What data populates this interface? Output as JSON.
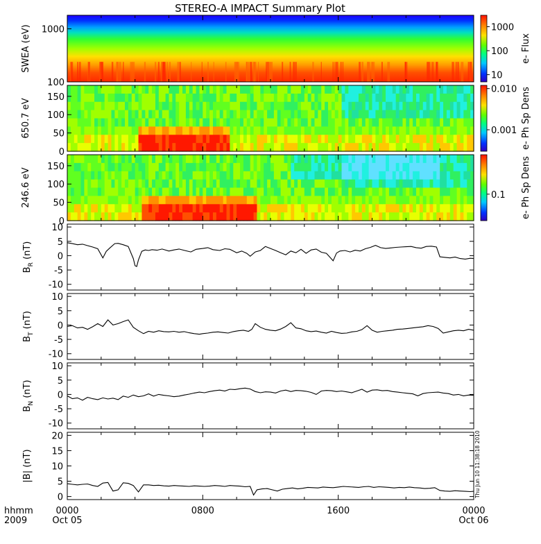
{
  "title": "STEREO-A IMPACT Summary Plot",
  "time_axis": {
    "row_label_1": "hhmm",
    "row_label_2": "2009",
    "ticks": [
      {
        "hhmm": "0000",
        "date": "Oct 05",
        "t": 0
      },
      {
        "hhmm": "0800",
        "date": "",
        "t": 8
      },
      {
        "hhmm": "1600",
        "date": "",
        "t": 16
      },
      {
        "hhmm": "0000",
        "date": "Oct 06",
        "t": 24
      }
    ],
    "range_hours": [
      0,
      24
    ]
  },
  "timestamp": "Thu Jun 10 11:38:18 2010",
  "colors": {
    "line": "#000000",
    "background": "#ffffff"
  },
  "chart_data": [
    {
      "id": "swea",
      "type": "heatmap",
      "ylabel": "SWEA (eV)",
      "yscale": "log",
      "ylim": [
        100,
        1800
      ],
      "yticks": [
        {
          "v": 1000,
          "label": "1000"
        },
        {
          "v": 100,
          "label": "100"
        }
      ],
      "colorbar": {
        "label": "e- Flux",
        "scale": "log",
        "range": [
          5,
          3000
        ],
        "ticks": [
          {
            "v": 1000,
            "label": "1000"
          },
          {
            "v": 100,
            "label": "100"
          },
          {
            "v": 10,
            "label": "10"
          }
        ]
      },
      "pattern": "energy spectrum: high flux (orange-red) at 100-250 eV decreasing to low flux (blue) above 1000 eV, steady through the day"
    },
    {
      "id": "pad650",
      "type": "heatmap",
      "ylabel": "650.7 eV",
      "ylim": [
        0,
        180
      ],
      "yticks": [
        {
          "v": 0,
          "label": "0"
        },
        {
          "v": 50,
          "label": "50"
        },
        {
          "v": 100,
          "label": "100"
        },
        {
          "v": 150,
          "label": "150"
        }
      ],
      "colorbar": {
        "label": "e- Ph Sp Dens",
        "scale": "log",
        "range": [
          0.0003,
          0.012
        ],
        "ticks": [
          {
            "v": 0.01,
            "label": "0.010"
          },
          {
            "v": 0.001,
            "label": "0.001"
          }
        ]
      },
      "pattern": "pitch-angle distribution: strong (red/yellow) near 0-50 deg around 04-09 hhmm, green elsewhere, cyan at high angles after 16 hhmm"
    },
    {
      "id": "pad246",
      "type": "heatmap",
      "ylabel": "246.6 eV",
      "ylim": [
        0,
        180
      ],
      "yticks": [
        {
          "v": 0,
          "label": "0"
        },
        {
          "v": 50,
          "label": "50"
        },
        {
          "v": 100,
          "label": "100"
        },
        {
          "v": 150,
          "label": "150"
        }
      ],
      "colorbar": {
        "label": "e- Ph Sp Dens",
        "scale": "log",
        "range": [
          0.03,
          0.6
        ],
        "ticks": [
          {
            "v": 0.1,
            "label": "0.1"
          }
        ]
      },
      "pattern": "pitch-angle distribution: red/orange band at 0-50 deg from about 04 to 11 hhmm, green/cyan elsewhere"
    },
    {
      "id": "br",
      "type": "line",
      "ylabel_main": "B",
      "ylabel_sub": "R",
      "ylabel_unit": "(nT)",
      "ylim": [
        -12,
        11
      ],
      "yticks": [
        {
          "v": 10,
          "label": "10"
        },
        {
          "v": 5,
          "label": "5"
        },
        {
          "v": 0,
          "label": "0"
        },
        {
          "v": -5,
          "label": "-5"
        },
        {
          "v": -10,
          "label": "-10"
        }
      ],
      "x": [
        0,
        0.3,
        0.6,
        0.9,
        1.2,
        1.5,
        1.8,
        2.1,
        2.3,
        2.5,
        2.8,
        3.0,
        3.3,
        3.6,
        3.9,
        4.0,
        4.1,
        4.2,
        4.4,
        4.6,
        4.8,
        5.0,
        5.3,
        5.6,
        6.0,
        6.3,
        6.6,
        7.0,
        7.3,
        7.6,
        8.0,
        8.3,
        8.6,
        9.0,
        9.3,
        9.6,
        10.0,
        10.3,
        10.6,
        10.8,
        11.1,
        11.4,
        11.7,
        12.0,
        12.3,
        12.6,
        12.9,
        13.2,
        13.5,
        13.8,
        14.1,
        14.4,
        14.7,
        15.0,
        15.3,
        15.5,
        15.7,
        15.9,
        16.1,
        16.4,
        16.7,
        17.0,
        17.3,
        17.6,
        17.9,
        18.2,
        18.5,
        18.8,
        19.1,
        19.4,
        19.7,
        20.0,
        20.3,
        20.6,
        20.9,
        21.2,
        21.5,
        21.8,
        22.0,
        22.3,
        22.6,
        22.9,
        23.2,
        23.5,
        23.8,
        24.0
      ],
      "y": [
        4.5,
        4.2,
        3.8,
        4.0,
        3.5,
        3.0,
        2.4,
        -0.8,
        1.5,
        2.6,
        4.2,
        4.3,
        3.8,
        3.2,
        -1.0,
        -3.5,
        -3.8,
        -1.5,
        1.5,
        2.0,
        1.8,
        2.1,
        1.9,
        2.3,
        1.6,
        2.0,
        2.3,
        1.7,
        1.3,
        2.2,
        2.5,
        2.8,
        2.1,
        1.8,
        2.4,
        2.2,
        1.0,
        1.6,
        0.8,
        -0.2,
        1.3,
        1.8,
        3.2,
        2.5,
        1.8,
        1.0,
        0.3,
        1.6,
        1.0,
        2.2,
        0.8,
        2.0,
        2.3,
        1.2,
        0.8,
        -0.5,
        -1.8,
        0.9,
        1.6,
        1.8,
        1.3,
        1.9,
        1.6,
        2.4,
        2.9,
        3.6,
        2.8,
        2.5,
        2.7,
        2.9,
        3.0,
        3.1,
        3.2,
        2.8,
        2.6,
        3.2,
        3.3,
        3.0,
        -0.4,
        -0.6,
        -0.8,
        -0.5,
        -1.0,
        -1.2,
        -0.9,
        -1.0
      ]
    },
    {
      "id": "bt",
      "type": "line",
      "ylabel_main": "B",
      "ylabel_sub": "T",
      "ylabel_unit": "(nT)",
      "ylim": [
        -12,
        11
      ],
      "yticks": [
        {
          "v": 10,
          "label": "10"
        },
        {
          "v": 5,
          "label": "5"
        },
        {
          "v": 0,
          "label": "0"
        },
        {
          "v": -5,
          "label": "-5"
        },
        {
          "v": -10,
          "label": "-10"
        }
      ],
      "x": [
        0,
        0.3,
        0.6,
        0.9,
        1.2,
        1.5,
        1.8,
        2.1,
        2.4,
        2.7,
        3.0,
        3.3,
        3.6,
        3.9,
        4.2,
        4.5,
        4.8,
        5.1,
        5.4,
        5.7,
        6.0,
        6.3,
        6.6,
        6.9,
        7.2,
        7.5,
        7.8,
        8.0,
        8.3,
        8.6,
        8.9,
        9.2,
        9.5,
        9.8,
        10.1,
        10.4,
        10.7,
        10.9,
        11.1,
        11.4,
        11.7,
        12.0,
        12.3,
        12.6,
        12.9,
        13.2,
        13.5,
        13.8,
        14.1,
        14.4,
        14.7,
        15.0,
        15.3,
        15.6,
        15.9,
        16.2,
        16.5,
        16.8,
        17.1,
        17.4,
        17.7,
        18.0,
        18.3,
        18.6,
        18.9,
        19.2,
        19.5,
        19.8,
        20.1,
        20.4,
        20.7,
        21.0,
        21.3,
        21.6,
        21.9,
        22.2,
        22.5,
        22.8,
        23.1,
        23.4,
        23.7,
        24.0
      ],
      "y": [
        -0.5,
        -0.2,
        -1.0,
        -0.8,
        -1.5,
        -0.6,
        0.5,
        -0.5,
        1.8,
        0.0,
        0.5,
        1.2,
        1.8,
        -0.8,
        -2.0,
        -3.0,
        -2.2,
        -2.5,
        -2.0,
        -2.3,
        -2.4,
        -2.2,
        -2.5,
        -2.3,
        -2.7,
        -3.0,
        -3.2,
        -3.0,
        -2.8,
        -2.5,
        -2.4,
        -2.6,
        -2.8,
        -2.3,
        -2.0,
        -1.8,
        -2.2,
        -1.5,
        0.5,
        -0.8,
        -1.5,
        -1.8,
        -2.0,
        -1.4,
        -0.5,
        0.8,
        -1.0,
        -1.3,
        -2.0,
        -2.3,
        -2.1,
        -2.5,
        -2.8,
        -2.2,
        -2.6,
        -2.9,
        -2.8,
        -2.4,
        -2.2,
        -1.6,
        -0.2,
        -1.8,
        -2.5,
        -2.2,
        -2.0,
        -1.8,
        -1.5,
        -1.4,
        -1.2,
        -1.0,
        -0.8,
        -0.6,
        -0.2,
        -0.5,
        -1.2,
        -2.8,
        -2.4,
        -2.0,
        -1.8,
        -2.0,
        -1.5,
        -1.8
      ]
    },
    {
      "id": "bn",
      "type": "line",
      "ylabel_main": "B",
      "ylabel_sub": "N",
      "ylabel_unit": "(nT)",
      "ylim": [
        -12,
        11
      ],
      "yticks": [
        {
          "v": 10,
          "label": "10"
        },
        {
          "v": 5,
          "label": "5"
        },
        {
          "v": 0,
          "label": "0"
        },
        {
          "v": -5,
          "label": "-5"
        },
        {
          "v": -10,
          "label": "-10"
        }
      ],
      "x": [
        0,
        0.3,
        0.6,
        0.9,
        1.2,
        1.5,
        1.8,
        2.1,
        2.4,
        2.7,
        3.0,
        3.3,
        3.6,
        3.9,
        4.2,
        4.5,
        4.8,
        5.1,
        5.4,
        5.7,
        6.0,
        6.3,
        6.6,
        6.9,
        7.2,
        7.5,
        7.8,
        8.1,
        8.4,
        8.7,
        9.0,
        9.3,
        9.6,
        9.9,
        10.2,
        10.5,
        10.8,
        11.1,
        11.4,
        11.7,
        12.0,
        12.3,
        12.6,
        12.9,
        13.2,
        13.5,
        13.8,
        14.1,
        14.4,
        14.7,
        15.0,
        15.3,
        15.6,
        15.9,
        16.2,
        16.5,
        16.8,
        17.1,
        17.4,
        17.7,
        18.0,
        18.3,
        18.6,
        18.9,
        19.2,
        19.5,
        19.8,
        20.1,
        20.4,
        20.7,
        21.0,
        21.3,
        21.6,
        21.9,
        22.2,
        22.5,
        22.8,
        23.1,
        23.4,
        23.7,
        24.0
      ],
      "y": [
        -0.5,
        -1.5,
        -1.2,
        -2.0,
        -1.0,
        -1.5,
        -1.8,
        -1.2,
        -1.6,
        -1.3,
        -1.8,
        -0.6,
        -1.0,
        -0.2,
        -0.8,
        -0.5,
        0.2,
        -0.6,
        0.0,
        -0.3,
        -0.5,
        -0.8,
        -0.6,
        -0.2,
        0.1,
        0.5,
        0.8,
        0.6,
        1.0,
        1.3,
        1.5,
        1.2,
        1.8,
        1.7,
        2.0,
        2.2,
        1.9,
        1.0,
        0.6,
        0.9,
        0.8,
        0.5,
        1.2,
        1.5,
        1.0,
        1.4,
        1.3,
        1.1,
        0.7,
        0.0,
        1.2,
        1.4,
        1.3,
        1.0,
        1.2,
        0.9,
        0.6,
        1.2,
        1.8,
        0.8,
        1.5,
        1.6,
        1.3,
        1.4,
        1.0,
        0.8,
        0.6,
        0.4,
        0.2,
        -0.5,
        0.3,
        0.6,
        0.7,
        0.8,
        0.5,
        0.3,
        -0.2,
        0.0,
        -0.5,
        -0.2,
        -0.3
      ]
    },
    {
      "id": "bmag",
      "type": "line",
      "ylabel_main": "|B|",
      "ylabel_sub": "",
      "ylabel_unit": "(nT)",
      "ylim": [
        -1,
        21
      ],
      "yticks": [
        {
          "v": 20,
          "label": "20"
        },
        {
          "v": 15,
          "label": "15"
        },
        {
          "v": 10,
          "label": "10"
        },
        {
          "v": 5,
          "label": "5"
        },
        {
          "v": 0,
          "label": "0"
        }
      ],
      "x": [
        0,
        0.3,
        0.6,
        0.9,
        1.2,
        1.5,
        1.8,
        2.1,
        2.4,
        2.7,
        3.0,
        3.3,
        3.6,
        3.9,
        4.2,
        4.5,
        4.8,
        5.1,
        5.4,
        5.7,
        6.0,
        6.3,
        6.6,
        6.9,
        7.2,
        7.5,
        7.8,
        8.1,
        8.4,
        8.7,
        9.0,
        9.3,
        9.6,
        9.9,
        10.2,
        10.5,
        10.8,
        11.0,
        11.2,
        11.5,
        11.8,
        12.1,
        12.4,
        12.7,
        13.0,
        13.3,
        13.6,
        13.9,
        14.2,
        14.5,
        14.8,
        15.1,
        15.4,
        15.7,
        16.0,
        16.3,
        16.6,
        16.9,
        17.2,
        17.5,
        17.8,
        18.1,
        18.4,
        18.7,
        19.0,
        19.3,
        19.6,
        19.9,
        20.2,
        20.5,
        20.8,
        21.1,
        21.4,
        21.7,
        22.0,
        22.3,
        22.6,
        22.9,
        23.2,
        23.5,
        23.8,
        24.0
      ],
      "y": [
        4.2,
        4.0,
        3.8,
        4.0,
        4.1,
        3.6,
        3.3,
        4.4,
        4.6,
        1.8,
        2.2,
        4.5,
        4.3,
        3.6,
        1.5,
        3.8,
        3.8,
        3.6,
        3.7,
        3.5,
        3.4,
        3.6,
        3.5,
        3.4,
        3.3,
        3.5,
        3.4,
        3.3,
        3.4,
        3.6,
        3.5,
        3.3,
        3.6,
        3.5,
        3.4,
        3.2,
        3.3,
        0.5,
        2.2,
        2.5,
        2.6,
        2.2,
        1.8,
        2.4,
        2.6,
        2.8,
        2.5,
        2.7,
        3.0,
        2.9,
        2.8,
        3.1,
        3.0,
        2.9,
        3.1,
        3.3,
        3.2,
        3.1,
        3.0,
        3.2,
        3.3,
        3.0,
        3.2,
        3.1,
        3.0,
        2.8,
        3.0,
        2.9,
        3.1,
        2.9,
        2.8,
        2.6,
        2.7,
        2.9,
        2.0,
        1.8,
        1.7,
        1.9,
        1.8,
        1.7,
        1.6,
        1.7
      ]
    }
  ]
}
